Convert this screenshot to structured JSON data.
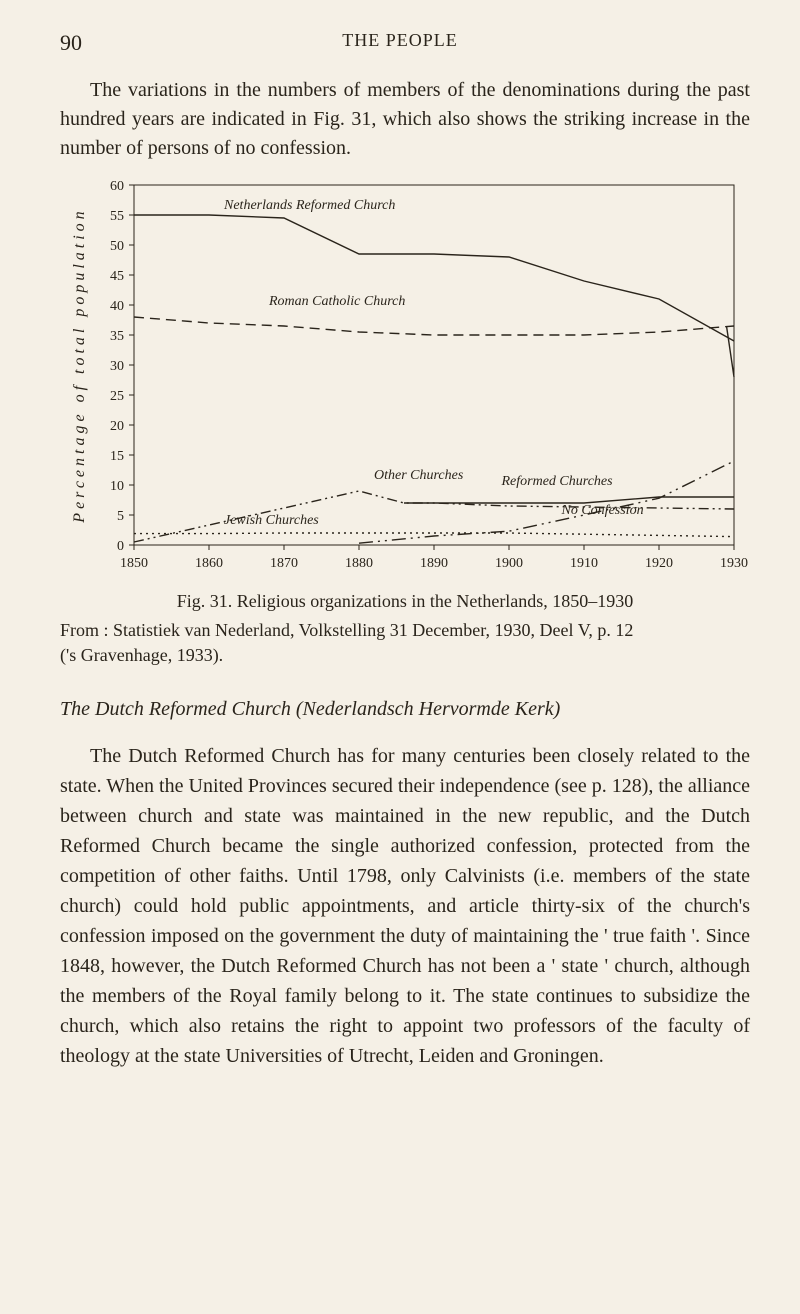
{
  "page_number": "90",
  "running_head": "THE PEOPLE",
  "intro_text": "The variations in the numbers of members of the denominations during the past hundred years are indicated in Fig. 31, which also shows the striking increase in the number of persons of no confession.",
  "chart": {
    "type": "line",
    "background_color": "#f5f0e6",
    "border_color": "#2a241b",
    "text_color": "#2a241b",
    "line_color": "#2a241b",
    "x_label_years": [
      "1850",
      "1860",
      "1870",
      "1880",
      "1890",
      "1900",
      "1910",
      "1920",
      "1930"
    ],
    "y_ticks": [
      0,
      5,
      10,
      15,
      20,
      25,
      30,
      35,
      40,
      45,
      50,
      55,
      60
    ],
    "xlim": [
      1850,
      1930
    ],
    "ylim": [
      0,
      60
    ],
    "y_axis_title": "Percentage of total population",
    "series": [
      {
        "name": "Netherlands Reformed Church",
        "label": "Netherlands Reformed Church",
        "style": "solid",
        "points": [
          [
            1850,
            55
          ],
          [
            1860,
            55
          ],
          [
            1870,
            54.5
          ],
          [
            1880,
            48.5
          ],
          [
            1890,
            48.5
          ],
          [
            1900,
            48
          ],
          [
            1910,
            44
          ],
          [
            1920,
            41
          ],
          [
            1930,
            34
          ]
        ]
      },
      {
        "name": "Roman Catholic Church",
        "label": "Roman Catholic Church",
        "style": "dashed",
        "points": [
          [
            1850,
            38
          ],
          [
            1860,
            37
          ],
          [
            1870,
            36.5
          ],
          [
            1880,
            35.5
          ],
          [
            1890,
            35
          ],
          [
            1900,
            35
          ],
          [
            1910,
            35
          ],
          [
            1920,
            35.5
          ],
          [
            1930,
            36.5
          ]
        ]
      },
      {
        "name": "Roman Catholic tail",
        "label": "",
        "style": "solid",
        "points": [
          [
            1929,
            36.5
          ],
          [
            1930,
            28
          ]
        ]
      },
      {
        "name": "Other Churches",
        "label": "Other Churches",
        "style": "dash-double",
        "points": [
          [
            1850,
            0.5
          ],
          [
            1880,
            9
          ],
          [
            1886,
            7
          ],
          [
            1890,
            7
          ],
          [
            1900,
            6.5
          ],
          [
            1930,
            6
          ]
        ]
      },
      {
        "name": "Reformed Churches",
        "label": "Reformed Churches",
        "style": "solid",
        "points": [
          [
            1886,
            7
          ],
          [
            1890,
            7
          ],
          [
            1900,
            7
          ],
          [
            1910,
            7
          ],
          [
            1920,
            8
          ],
          [
            1930,
            8
          ]
        ]
      },
      {
        "name": "No Confession",
        "label": "No Confession",
        "style": "dash-dot-dot",
        "points": [
          [
            1880,
            0.3
          ],
          [
            1890,
            1.5
          ],
          [
            1900,
            2.3
          ],
          [
            1910,
            5
          ],
          [
            1920,
            7.8
          ],
          [
            1930,
            14
          ]
        ]
      },
      {
        "name": "Jewish Churches",
        "label": "Jewish Churches",
        "style": "dotted",
        "points": [
          [
            1850,
            1.9
          ],
          [
            1860,
            1.9
          ],
          [
            1870,
            2
          ],
          [
            1880,
            2
          ],
          [
            1890,
            2
          ],
          [
            1900,
            2
          ],
          [
            1910,
            1.8
          ],
          [
            1920,
            1.6
          ],
          [
            1930,
            1.4
          ]
        ]
      }
    ],
    "inline_labels": {
      "netherlands": "Netherlands Reformed Church",
      "roman": "Roman Catholic Church",
      "other": "Other Churches",
      "reformed": "Reformed Churches",
      "noconf": "No Confession",
      "jewish": "Jewish Churches"
    }
  },
  "caption": "Fig. 31.   Religious organizations in the Netherlands, 1850–1930",
  "source_line1": "From :  Statistiek van Nederland, Volkstelling 31 December, 1930, Deel V, p. 12",
  "source_line2": "('s Gravenhage, 1933).",
  "subheading": "The Dutch Reformed Church (Nederlandsch Hervormde Kerk)",
  "body": "The Dutch Reformed Church has for many centuries been closely related to the state.  When the United Provinces secured their independence (see p. 128), the alliance between church and state was maintained in the new republic, and the Dutch Reformed Church became the single authorized confession, protected from the competition of other faiths.  Until 1798, only Calvinists (i.e. members of the state church) could hold public appointments, and article thirty-six of the church's confession imposed on the government the duty of maintaining the ' true faith '.  Since 1848, however, the Dutch Reformed Church has not been a ' state ' church, although the members of the Royal family belong to it.  The state continues to subsidize the church, which also retains the right to appoint two professors of the faculty of theology at the state Universities of Utrecht, Leiden and Groningen."
}
